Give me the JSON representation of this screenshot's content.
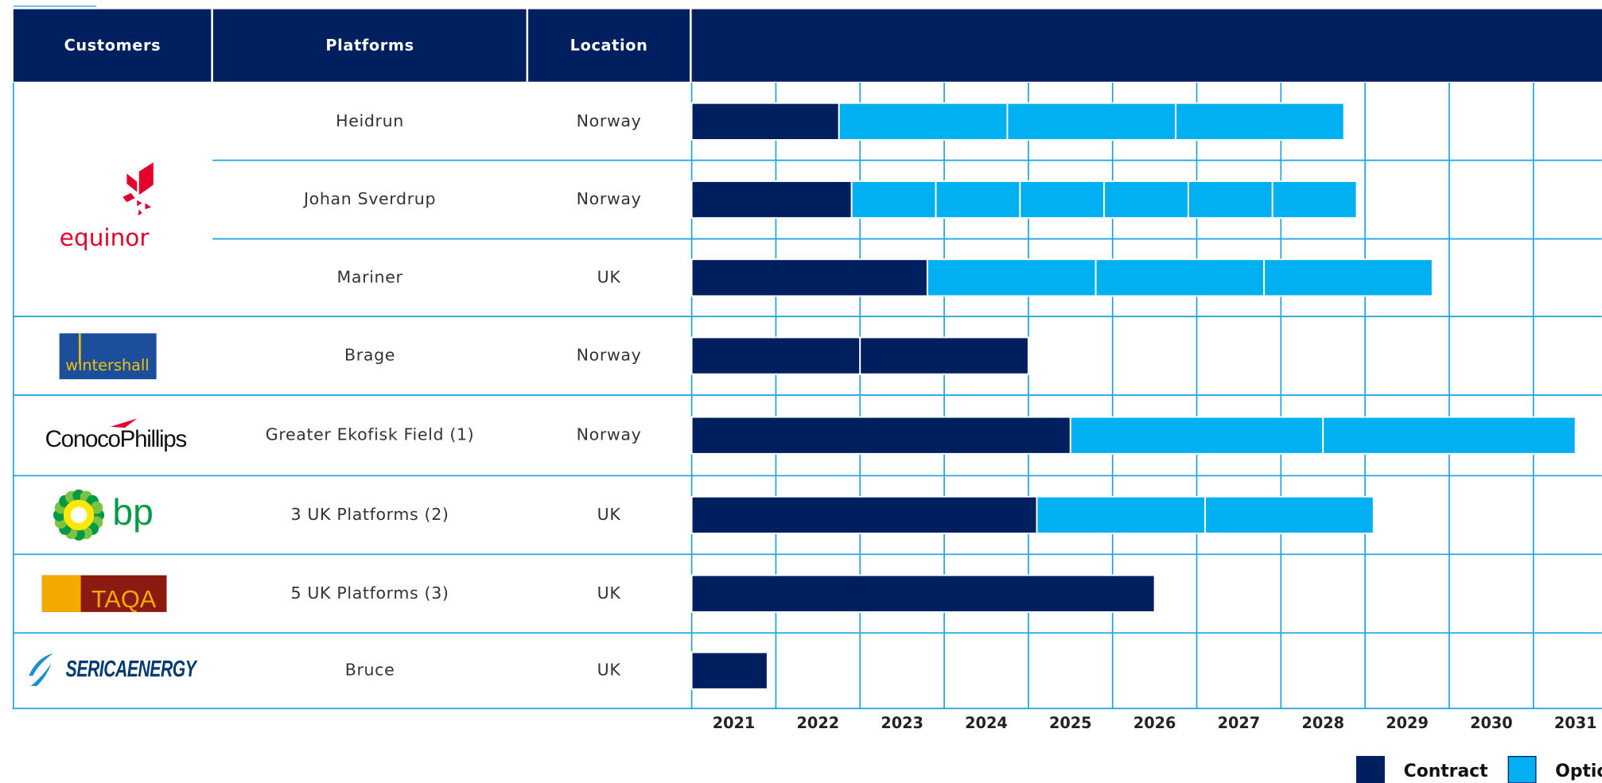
{
  "chart_data": {
    "type": "gantt",
    "headers": [
      "Customers",
      "Platforms",
      "Location"
    ],
    "groups": [
      {
        "customer": "equinor",
        "rows": [
          {
            "platform": "Heidrun",
            "location": "Norway",
            "segments": [
              {
                "kind": "Contract",
                "years": 1.75
              },
              {
                "kind": "Option",
                "years": 2
              },
              {
                "kind": "Option",
                "years": 2
              },
              {
                "kind": "Option",
                "years": 2
              }
            ]
          },
          {
            "platform": "Johan Sverdrup",
            "location": "Norway",
            "segments": [
              {
                "kind": "Contract",
                "years": 1.9
              },
              {
                "kind": "Option",
                "years": 1
              },
              {
                "kind": "Option",
                "years": 1
              },
              {
                "kind": "Option",
                "years": 1
              },
              {
                "kind": "Option",
                "years": 1
              },
              {
                "kind": "Option",
                "years": 1
              },
              {
                "kind": "Option",
                "years": 1
              }
            ]
          },
          {
            "platform": "Mariner",
            "location": "UK",
            "segments": [
              {
                "kind": "Contract",
                "years": 2.8
              },
              {
                "kind": "Option",
                "years": 2
              },
              {
                "kind": "Option",
                "years": 2
              },
              {
                "kind": "Option",
                "years": 2
              }
            ]
          }
        ]
      },
      {
        "customer": "wintershall",
        "rows": [
          {
            "platform": "Brage",
            "location": "Norway",
            "segments": [
              {
                "kind": "Contract",
                "years": 2
              },
              {
                "kind": "Contract",
                "years": 2
              }
            ]
          }
        ]
      },
      {
        "customer": "ConocoPhillips",
        "rows": [
          {
            "platform": "Greater Ekofisk Field (1)",
            "location": "Norway",
            "segments": [
              {
                "kind": "Contract",
                "years": 4.5
              },
              {
                "kind": "Option",
                "years": 3
              },
              {
                "kind": "Option",
                "years": 3
              }
            ]
          }
        ]
      },
      {
        "customer": "bp",
        "rows": [
          {
            "platform": "3 UK Platforms (2)",
            "location": "UK",
            "segments": [
              {
                "kind": "Contract",
                "years": 4.1
              },
              {
                "kind": "Option",
                "years": 2
              },
              {
                "kind": "Option",
                "years": 2
              }
            ]
          }
        ]
      },
      {
        "customer": "TAQA",
        "rows": [
          {
            "platform": "5 UK Platforms (3)",
            "location": "UK",
            "segments": [
              {
                "kind": "Contract",
                "years": 5.5
              }
            ]
          }
        ]
      },
      {
        "customer": "SERICAENERGY",
        "rows": [
          {
            "platform": "Bruce",
            "location": "UK",
            "segments": [
              {
                "kind": "Contract",
                "years": 0.9
              }
            ]
          }
        ]
      }
    ],
    "xlim": [
      2021,
      2032
    ],
    "xticks": [
      2021,
      2022,
      2023,
      2024,
      2025,
      2026,
      2027,
      2028,
      2029,
      2030,
      2031
    ],
    "grid": true,
    "series": [
      {
        "name": "Contract",
        "color": "#001f5f"
      },
      {
        "name": "Option",
        "color": "#00b0f0"
      }
    ],
    "legend": "bottom-right"
  }
}
